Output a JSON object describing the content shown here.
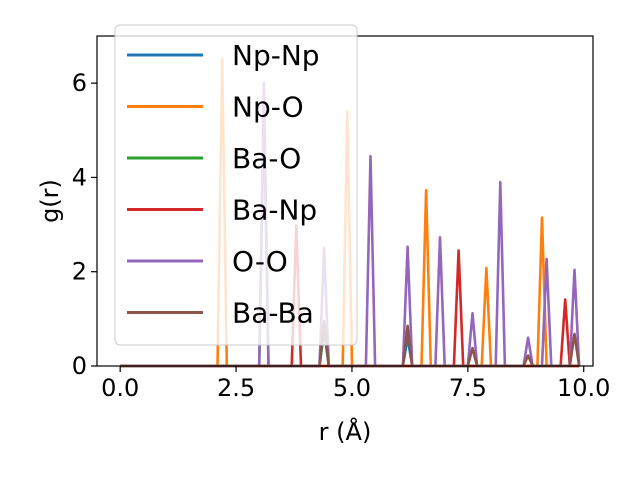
{
  "chart_data": {
    "type": "line",
    "xlabel": "r (Å)",
    "ylabel": "g(r)",
    "xlim": [
      -0.5,
      10.2
    ],
    "ylim": [
      0,
      7
    ],
    "xticks": [
      {
        "value": 0.0,
        "label": "0.0"
      },
      {
        "value": 2.5,
        "label": "2.5"
      },
      {
        "value": 5.0,
        "label": "5.0"
      },
      {
        "value": 7.5,
        "label": "7.5"
      },
      {
        "value": 10.0,
        "label": "10.0"
      }
    ],
    "yticks": [
      {
        "value": 0,
        "label": "0"
      },
      {
        "value": 2,
        "label": "2"
      },
      {
        "value": 4,
        "label": "4"
      },
      {
        "value": 6,
        "label": "6"
      }
    ],
    "legend_position": "upper-left",
    "series": [
      {
        "name": "Np-Np",
        "color": "#1f77b4",
        "peaks": [
          {
            "x": 4.4,
            "y": 0.75
          },
          {
            "x": 6.2,
            "y": 0.6
          }
        ]
      },
      {
        "name": "Np-O",
        "color": "#ff7f0e",
        "peaks": [
          {
            "x": 2.2,
            "y": 6.52
          },
          {
            "x": 4.9,
            "y": 5.4
          },
          {
            "x": 6.6,
            "y": 3.73
          },
          {
            "x": 7.9,
            "y": 2.08
          },
          {
            "x": 9.1,
            "y": 3.15
          }
        ]
      },
      {
        "name": "Ba-O",
        "color": "#2ca02c",
        "peaks": [
          {
            "x": 3.1,
            "y": 5.5
          },
          {
            "x": 4.4,
            "y": 0.8
          }
        ]
      },
      {
        "name": "Ba-Np",
        "color": "#d62728",
        "peaks": [
          {
            "x": 3.8,
            "y": 2.98
          },
          {
            "x": 7.3,
            "y": 2.45
          },
          {
            "x": 9.6,
            "y": 1.41
          }
        ]
      },
      {
        "name": "O-O",
        "color": "#9467bd",
        "peaks": [
          {
            "x": 3.1,
            "y": 6.0
          },
          {
            "x": 4.4,
            "y": 2.5
          },
          {
            "x": 5.4,
            "y": 4.45
          },
          {
            "x": 6.2,
            "y": 2.53
          },
          {
            "x": 6.9,
            "y": 2.73
          },
          {
            "x": 7.6,
            "y": 1.12
          },
          {
            "x": 8.2,
            "y": 3.9
          },
          {
            "x": 8.8,
            "y": 0.6
          },
          {
            "x": 9.2,
            "y": 2.27
          },
          {
            "x": 9.8,
            "y": 2.04
          }
        ]
      },
      {
        "name": "Ba-Ba",
        "color": "#8c564b",
        "peaks": [
          {
            "x": 4.4,
            "y": 0.95
          },
          {
            "x": 6.2,
            "y": 0.85
          },
          {
            "x": 7.6,
            "y": 0.38
          },
          {
            "x": 8.8,
            "y": 0.22
          },
          {
            "x": 9.8,
            "y": 0.68
          }
        ]
      }
    ]
  }
}
